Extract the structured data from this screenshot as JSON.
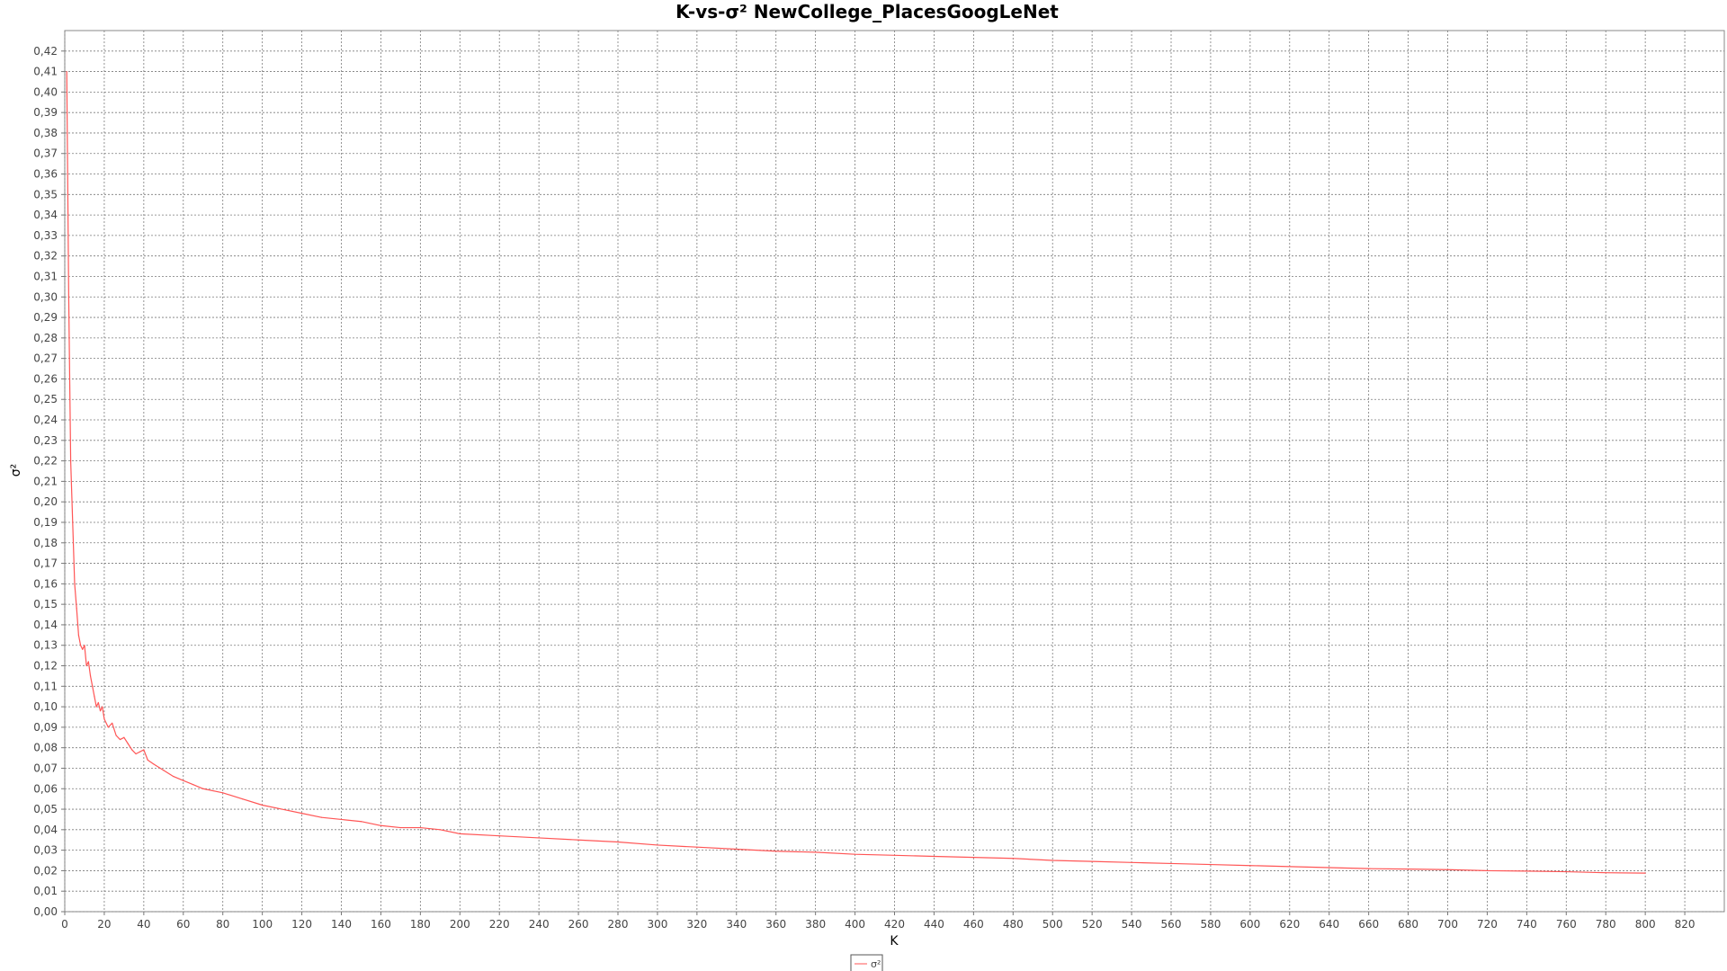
{
  "chart_data": {
    "type": "line",
    "title": "K-vs-σ² NewCollege_PlacesGoogLeNet",
    "xlabel": "K",
    "ylabel": "σ²",
    "xlim": [
      0,
      840
    ],
    "ylim": [
      0,
      0.43
    ],
    "x_ticks": [
      0,
      20,
      40,
      60,
      80,
      100,
      120,
      140,
      160,
      180,
      200,
      220,
      240,
      260,
      280,
      300,
      320,
      340,
      360,
      380,
      400,
      420,
      440,
      460,
      480,
      500,
      520,
      540,
      560,
      580,
      600,
      620,
      640,
      660,
      680,
      700,
      720,
      740,
      760,
      780,
      800,
      820
    ],
    "y_ticks": [
      "0,00",
      "0,01",
      "0,02",
      "0,03",
      "0,04",
      "0,05",
      "0,06",
      "0,07",
      "0,08",
      "0,09",
      "0,10",
      "0,11",
      "0,12",
      "0,13",
      "0,14",
      "0,15",
      "0,16",
      "0,17",
      "0,18",
      "0,19",
      "0,20",
      "0,21",
      "0,22",
      "0,23",
      "0,24",
      "0,25",
      "0,26",
      "0,27",
      "0,28",
      "0,29",
      "0,30",
      "0,31",
      "0,32",
      "0,33",
      "0,34",
      "0,35",
      "0,36",
      "0,37",
      "0,38",
      "0,39",
      "0,40",
      "0,41",
      "0,42"
    ],
    "grid": true,
    "legend_position": "bottom",
    "series": [
      {
        "name": "σ²",
        "color": "#ff5555",
        "x": [
          1,
          2,
          3,
          4,
          5,
          6,
          7,
          8,
          9,
          10,
          11,
          12,
          13,
          14,
          15,
          16,
          17,
          18,
          19,
          20,
          22,
          24,
          26,
          28,
          30,
          32,
          34,
          36,
          38,
          40,
          42,
          45,
          50,
          55,
          60,
          65,
          70,
          80,
          90,
          100,
          110,
          120,
          130,
          140,
          150,
          160,
          170,
          180,
          190,
          200,
          220,
          240,
          260,
          280,
          300,
          320,
          340,
          360,
          380,
          400,
          420,
          440,
          460,
          480,
          500,
          520,
          540,
          560,
          580,
          600,
          620,
          640,
          660,
          680,
          700,
          720,
          740,
          760,
          780,
          800
        ],
        "y": [
          0.41,
          0.3,
          0.22,
          0.19,
          0.16,
          0.148,
          0.135,
          0.13,
          0.128,
          0.13,
          0.12,
          0.122,
          0.115,
          0.11,
          0.105,
          0.1,
          0.102,
          0.098,
          0.1,
          0.094,
          0.09,
          0.092,
          0.086,
          0.084,
          0.085,
          0.082,
          0.079,
          0.077,
          0.078,
          0.079,
          0.074,
          0.072,
          0.069,
          0.066,
          0.064,
          0.062,
          0.06,
          0.058,
          0.055,
          0.052,
          0.05,
          0.048,
          0.046,
          0.045,
          0.044,
          0.042,
          0.041,
          0.041,
          0.04,
          0.038,
          0.037,
          0.036,
          0.035,
          0.034,
          0.0325,
          0.0315,
          0.0305,
          0.0295,
          0.029,
          0.028,
          0.0275,
          0.027,
          0.0265,
          0.026,
          0.025,
          0.0245,
          0.024,
          0.0235,
          0.023,
          0.0225,
          0.022,
          0.0215,
          0.021,
          0.0208,
          0.0205,
          0.02,
          0.0198,
          0.0195,
          0.019,
          0.0188
        ]
      }
    ]
  }
}
